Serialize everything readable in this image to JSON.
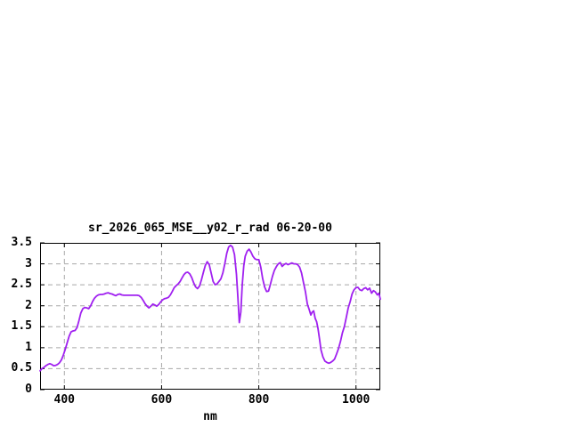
{
  "window": {
    "background": "#ffffff"
  },
  "chart_data": {
    "type": "line",
    "title": "sr_2026_065_MSE__y02_r_rad 06-20-00",
    "xlabel": "nm",
    "ylabel": "",
    "xlim": [
      350,
      1050
    ],
    "ylim": [
      0,
      3.5
    ],
    "xticks": [
      400,
      600,
      800,
      1000
    ],
    "yticks": [
      0,
      0.5,
      1,
      1.5,
      2,
      2.5,
      3,
      3.5
    ],
    "grid": true,
    "grid_style": "dashed",
    "legend": "none",
    "line_color": "#a020f0",
    "grid_color": "#a8a8a8",
    "border_color": "#000000",
    "text_color": "#000000",
    "points": [
      [
        350,
        0.45
      ],
      [
        354,
        0.5
      ],
      [
        358,
        0.53
      ],
      [
        362,
        0.57
      ],
      [
        366,
        0.6
      ],
      [
        370,
        0.62
      ],
      [
        374,
        0.6
      ],
      [
        378,
        0.57
      ],
      [
        382,
        0.58
      ],
      [
        386,
        0.6
      ],
      [
        390,
        0.64
      ],
      [
        394,
        0.71
      ],
      [
        398,
        0.83
      ],
      [
        402,
        0.97
      ],
      [
        406,
        1.13
      ],
      [
        410,
        1.28
      ],
      [
        414,
        1.38
      ],
      [
        418,
        1.4
      ],
      [
        422,
        1.41
      ],
      [
        426,
        1.48
      ],
      [
        430,
        1.65
      ],
      [
        434,
        1.83
      ],
      [
        438,
        1.93
      ],
      [
        442,
        1.96
      ],
      [
        446,
        1.95
      ],
      [
        450,
        1.93
      ],
      [
        454,
        2.0
      ],
      [
        458,
        2.1
      ],
      [
        462,
        2.18
      ],
      [
        466,
        2.23
      ],
      [
        470,
        2.26
      ],
      [
        474,
        2.27
      ],
      [
        478,
        2.27
      ],
      [
        482,
        2.28
      ],
      [
        486,
        2.3
      ],
      [
        490,
        2.31
      ],
      [
        494,
        2.29
      ],
      [
        498,
        2.28
      ],
      [
        502,
        2.26
      ],
      [
        506,
        2.24
      ],
      [
        510,
        2.27
      ],
      [
        514,
        2.28
      ],
      [
        518,
        2.26
      ],
      [
        522,
        2.25
      ],
      [
        526,
        2.25
      ],
      [
        530,
        2.25
      ],
      [
        534,
        2.25
      ],
      [
        538,
        2.25
      ],
      [
        542,
        2.25
      ],
      [
        546,
        2.25
      ],
      [
        550,
        2.25
      ],
      [
        554,
        2.24
      ],
      [
        558,
        2.2
      ],
      [
        562,
        2.13
      ],
      [
        566,
        2.05
      ],
      [
        570,
        1.99
      ],
      [
        574,
        1.95
      ],
      [
        578,
        1.99
      ],
      [
        582,
        2.04
      ],
      [
        586,
        2.02
      ],
      [
        590,
        1.99
      ],
      [
        594,
        2.03
      ],
      [
        598,
        2.09
      ],
      [
        602,
        2.14
      ],
      [
        606,
        2.17
      ],
      [
        610,
        2.18
      ],
      [
        614,
        2.2
      ],
      [
        618,
        2.26
      ],
      [
        622,
        2.34
      ],
      [
        626,
        2.43
      ],
      [
        630,
        2.48
      ],
      [
        634,
        2.52
      ],
      [
        638,
        2.58
      ],
      [
        642,
        2.66
      ],
      [
        646,
        2.74
      ],
      [
        650,
        2.79
      ],
      [
        654,
        2.8
      ],
      [
        658,
        2.76
      ],
      [
        662,
        2.67
      ],
      [
        666,
        2.55
      ],
      [
        670,
        2.45
      ],
      [
        674,
        2.41
      ],
      [
        678,
        2.47
      ],
      [
        682,
        2.62
      ],
      [
        686,
        2.8
      ],
      [
        690,
        2.96
      ],
      [
        694,
        3.05
      ],
      [
        698,
        2.98
      ],
      [
        702,
        2.78
      ],
      [
        706,
        2.58
      ],
      [
        710,
        2.5
      ],
      [
        714,
        2.52
      ],
      [
        718,
        2.58
      ],
      [
        722,
        2.64
      ],
      [
        726,
        2.78
      ],
      [
        730,
        3.0
      ],
      [
        734,
        3.25
      ],
      [
        738,
        3.4
      ],
      [
        742,
        3.44
      ],
      [
        746,
        3.4
      ],
      [
        750,
        3.22
      ],
      [
        754,
        2.75
      ],
      [
        757,
        2.2
      ],
      [
        760,
        1.6
      ],
      [
        763,
        1.85
      ],
      [
        766,
        2.5
      ],
      [
        769,
        2.95
      ],
      [
        772,
        3.18
      ],
      [
        776,
        3.3
      ],
      [
        780,
        3.35
      ],
      [
        784,
        3.28
      ],
      [
        788,
        3.18
      ],
      [
        792,
        3.12
      ],
      [
        796,
        3.1
      ],
      [
        800,
        3.1
      ],
      [
        804,
        2.92
      ],
      [
        808,
        2.65
      ],
      [
        812,
        2.45
      ],
      [
        816,
        2.34
      ],
      [
        820,
        2.35
      ],
      [
        824,
        2.52
      ],
      [
        828,
        2.7
      ],
      [
        832,
        2.84
      ],
      [
        836,
        2.93
      ],
      [
        840,
        3.0
      ],
      [
        844,
        3.03
      ],
      [
        848,
        2.94
      ],
      [
        852,
        2.98
      ],
      [
        856,
        3.01
      ],
      [
        860,
        2.98
      ],
      [
        864,
        3.0
      ],
      [
        868,
        3.02
      ],
      [
        872,
        3.0
      ],
      [
        876,
        3.0
      ],
      [
        880,
        2.98
      ],
      [
        884,
        2.92
      ],
      [
        888,
        2.78
      ],
      [
        892,
        2.55
      ],
      [
        896,
        2.33
      ],
      [
        900,
        2.04
      ],
      [
        904,
        1.9
      ],
      [
        907,
        1.78
      ],
      [
        910,
        1.85
      ],
      [
        913,
        1.88
      ],
      [
        916,
        1.7
      ],
      [
        919,
        1.62
      ],
      [
        922,
        1.45
      ],
      [
        925,
        1.2
      ],
      [
        928,
        0.95
      ],
      [
        932,
        0.78
      ],
      [
        936,
        0.68
      ],
      [
        940,
        0.65
      ],
      [
        944,
        0.63
      ],
      [
        948,
        0.65
      ],
      [
        952,
        0.68
      ],
      [
        956,
        0.73
      ],
      [
        960,
        0.85
      ],
      [
        964,
        0.98
      ],
      [
        968,
        1.15
      ],
      [
        972,
        1.35
      ],
      [
        976,
        1.5
      ],
      [
        980,
        1.72
      ],
      [
        984,
        1.95
      ],
      [
        988,
        2.1
      ],
      [
        992,
        2.28
      ],
      [
        996,
        2.38
      ],
      [
        1000,
        2.43
      ],
      [
        1004,
        2.44
      ],
      [
        1008,
        2.38
      ],
      [
        1012,
        2.36
      ],
      [
        1016,
        2.41
      ],
      [
        1020,
        2.43
      ],
      [
        1024,
        2.38
      ],
      [
        1028,
        2.42
      ],
      [
        1032,
        2.3
      ],
      [
        1036,
        2.36
      ],
      [
        1040,
        2.33
      ],
      [
        1044,
        2.26
      ],
      [
        1047,
        2.3
      ],
      [
        1050,
        2.16
      ]
    ]
  }
}
